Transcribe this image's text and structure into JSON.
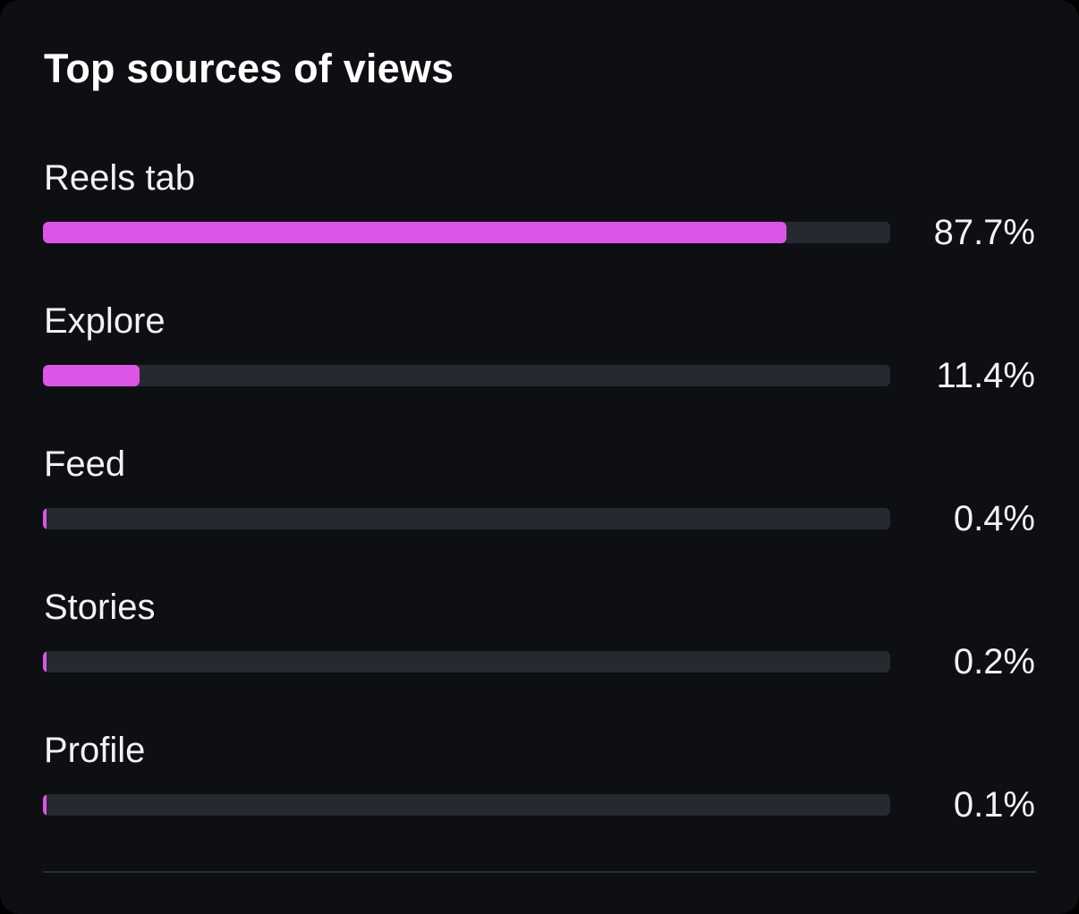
{
  "card": {
    "title": "Top sources of views"
  },
  "colors": {
    "background": "#0d0f13",
    "bar_fill": "#dc55e6",
    "bar_track": "#262930",
    "text": "#f2f2f4"
  },
  "sources": [
    {
      "label": "Reels tab",
      "percent_text": "87.7%",
      "fraction": 0.877
    },
    {
      "label": "Explore",
      "percent_text": "11.4%",
      "fraction": 0.114
    },
    {
      "label": "Feed",
      "percent_text": "0.4%",
      "fraction": 0.004
    },
    {
      "label": "Stories",
      "percent_text": "0.2%",
      "fraction": 0.002
    },
    {
      "label": "Profile",
      "percent_text": "0.1%",
      "fraction": 0.001
    }
  ]
}
